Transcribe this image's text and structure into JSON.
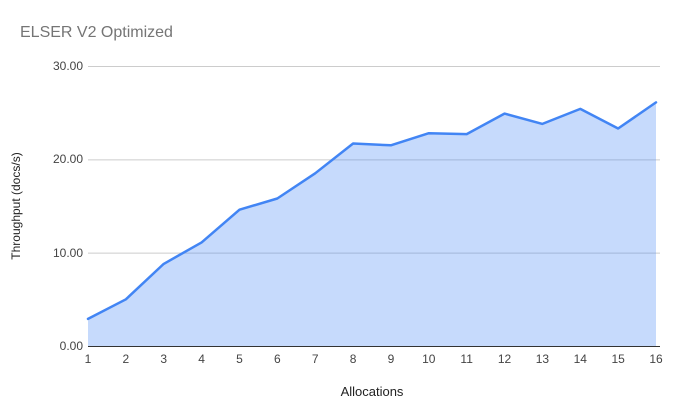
{
  "chart_data": {
    "type": "area",
    "title": "ELSER V2 Optimized",
    "xlabel": "Allocations",
    "ylabel": "Throughput (docs/s)",
    "categories": [
      "1",
      "2",
      "3",
      "4",
      "5",
      "6",
      "7",
      "8",
      "9",
      "10",
      "11",
      "12",
      "13",
      "14",
      "15",
      "16"
    ],
    "values": [
      2.9,
      5.0,
      8.8,
      11.1,
      14.6,
      15.8,
      18.5,
      21.7,
      21.5,
      22.8,
      22.7,
      24.9,
      23.8,
      25.4,
      23.3,
      26.1
    ],
    "ylim": [
      0,
      30
    ],
    "y_ticks": [
      "0.00",
      "10.00",
      "20.00",
      "30.00"
    ],
    "y_tick_values": [
      0,
      10,
      20,
      30
    ],
    "grid": "horizontal",
    "legend": "none",
    "line_color": "#4285f4",
    "fill_color": "rgba(66,133,244,0.3)",
    "grid_color": "#cccccc",
    "axis_color": "#333333",
    "title_color": "#757575",
    "tick_color": "#444444"
  }
}
